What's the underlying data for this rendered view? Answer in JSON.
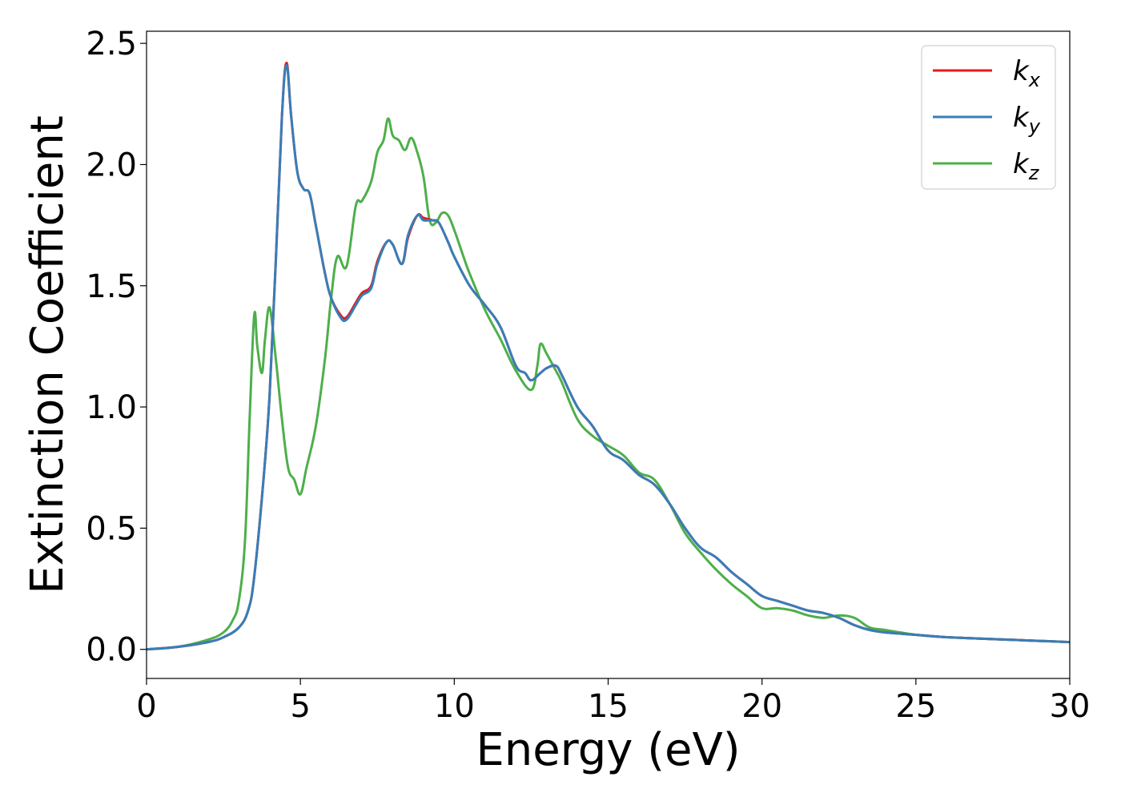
{
  "chart_data": {
    "type": "line",
    "xlabel": "Energy (eV)",
    "ylabel": "Extinction Coefficient",
    "xlim": [
      0,
      30
    ],
    "ylim": [
      -0.12,
      2.55
    ],
    "xticks": [
      0,
      5,
      10,
      15,
      20,
      25,
      30
    ],
    "xtick_labels": [
      "0",
      "5",
      "10",
      "15",
      "20",
      "25",
      "30"
    ],
    "yticks": [
      0.0,
      0.5,
      1.0,
      1.5,
      2.0,
      2.5
    ],
    "ytick_labels": [
      "0.0",
      "0.5",
      "1.0",
      "1.5",
      "2.0",
      "2.5"
    ],
    "grid": false,
    "legend_position": "top-right",
    "series": [
      {
        "name": "kx",
        "legend_base": "k",
        "legend_sub": "x",
        "color": "#e41a1c",
        "x": [
          0,
          1,
          2,
          2.5,
          3,
          3.3,
          3.5,
          3.8,
          4.0,
          4.2,
          4.4,
          4.55,
          4.7,
          4.9,
          5.1,
          5.3,
          5.5,
          5.8,
          6.0,
          6.3,
          6.5,
          6.8,
          7.0,
          7.3,
          7.5,
          7.8,
          8.0,
          8.3,
          8.5,
          8.8,
          9.0,
          9.3,
          9.5,
          9.8,
          10.0,
          10.5,
          11.0,
          11.5,
          12.0,
          12.3,
          12.5,
          12.8,
          13.0,
          13.3,
          13.5,
          14.0,
          14.5,
          15.0,
          15.5,
          16.0,
          16.5,
          17.0,
          17.5,
          18.0,
          18.5,
          19.0,
          19.5,
          20.0,
          20.5,
          21.0,
          21.5,
          22.0,
          22.5,
          23.0,
          23.5,
          24.0,
          25.0,
          26.0,
          27.0,
          28.0,
          29.0,
          30.0
        ],
        "y": [
          0.0,
          0.01,
          0.03,
          0.05,
          0.09,
          0.16,
          0.3,
          0.7,
          1.05,
          1.6,
          2.2,
          2.42,
          2.2,
          1.97,
          1.9,
          1.88,
          1.75,
          1.55,
          1.45,
          1.38,
          1.37,
          1.43,
          1.47,
          1.5,
          1.6,
          1.68,
          1.67,
          1.59,
          1.7,
          1.79,
          1.78,
          1.77,
          1.76,
          1.68,
          1.62,
          1.5,
          1.42,
          1.33,
          1.17,
          1.14,
          1.11,
          1.14,
          1.16,
          1.17,
          1.13,
          1.0,
          0.92,
          0.82,
          0.78,
          0.72,
          0.68,
          0.6,
          0.5,
          0.42,
          0.38,
          0.32,
          0.27,
          0.22,
          0.2,
          0.18,
          0.16,
          0.15,
          0.13,
          0.1,
          0.08,
          0.07,
          0.06,
          0.05,
          0.045,
          0.04,
          0.035,
          0.03
        ]
      },
      {
        "name": "ky",
        "legend_base": "k",
        "legend_sub": "y",
        "color": "#377eb8",
        "x": [
          0,
          1,
          2,
          2.5,
          3,
          3.3,
          3.5,
          3.8,
          4.0,
          4.2,
          4.4,
          4.55,
          4.7,
          4.9,
          5.1,
          5.3,
          5.5,
          5.8,
          6.0,
          6.3,
          6.5,
          6.8,
          7.0,
          7.3,
          7.5,
          7.8,
          8.0,
          8.3,
          8.5,
          8.8,
          9.0,
          9.3,
          9.5,
          9.8,
          10.0,
          10.5,
          11.0,
          11.5,
          12.0,
          12.3,
          12.5,
          12.8,
          13.0,
          13.3,
          13.5,
          14.0,
          14.5,
          15.0,
          15.5,
          16.0,
          16.5,
          17.0,
          17.5,
          18.0,
          18.5,
          19.0,
          19.5,
          20.0,
          20.5,
          21.0,
          21.5,
          22.0,
          22.5,
          23.0,
          23.5,
          24.0,
          25.0,
          26.0,
          27.0,
          28.0,
          29.0,
          30.0
        ],
        "y": [
          0.0,
          0.01,
          0.03,
          0.05,
          0.09,
          0.16,
          0.3,
          0.7,
          1.05,
          1.6,
          2.2,
          2.41,
          2.2,
          1.97,
          1.9,
          1.88,
          1.75,
          1.55,
          1.45,
          1.37,
          1.36,
          1.42,
          1.46,
          1.49,
          1.59,
          1.68,
          1.67,
          1.59,
          1.71,
          1.79,
          1.77,
          1.77,
          1.76,
          1.68,
          1.62,
          1.5,
          1.42,
          1.33,
          1.17,
          1.14,
          1.11,
          1.14,
          1.16,
          1.17,
          1.13,
          1.0,
          0.92,
          0.82,
          0.78,
          0.72,
          0.68,
          0.6,
          0.5,
          0.42,
          0.38,
          0.32,
          0.27,
          0.22,
          0.2,
          0.18,
          0.16,
          0.15,
          0.13,
          0.1,
          0.08,
          0.07,
          0.06,
          0.05,
          0.045,
          0.04,
          0.035,
          0.03
        ]
      },
      {
        "name": "kz",
        "legend_base": "k",
        "legend_sub": "z",
        "color": "#4daf4a",
        "x": [
          0,
          1,
          2,
          2.5,
          2.8,
          3.0,
          3.2,
          3.35,
          3.5,
          3.6,
          3.75,
          3.85,
          4.0,
          4.2,
          4.4,
          4.6,
          4.8,
          5.0,
          5.2,
          5.5,
          5.8,
          6.0,
          6.2,
          6.5,
          6.8,
          7.0,
          7.3,
          7.5,
          7.7,
          7.85,
          8.0,
          8.2,
          8.4,
          8.6,
          8.8,
          9.0,
          9.2,
          9.4,
          9.6,
          9.8,
          10.0,
          10.3,
          10.5,
          11.0,
          11.5,
          12.0,
          12.5,
          12.7,
          12.8,
          13.0,
          13.3,
          13.5,
          14.0,
          14.5,
          15.0,
          15.5,
          16.0,
          16.5,
          17.0,
          17.5,
          18.0,
          18.5,
          19.0,
          19.5,
          20.0,
          20.5,
          21.0,
          21.5,
          22.0,
          22.5,
          23.0,
          23.5,
          24.0,
          25.0,
          26.0,
          27.0,
          28.0,
          29.0,
          30.0
        ],
        "y": [
          0.0,
          0.01,
          0.04,
          0.07,
          0.12,
          0.2,
          0.45,
          0.95,
          1.38,
          1.25,
          1.14,
          1.28,
          1.41,
          1.2,
          0.95,
          0.75,
          0.7,
          0.64,
          0.75,
          0.92,
          1.2,
          1.45,
          1.62,
          1.58,
          1.83,
          1.85,
          1.93,
          2.05,
          2.1,
          2.19,
          2.12,
          2.1,
          2.06,
          2.11,
          2.05,
          1.95,
          1.77,
          1.76,
          1.8,
          1.79,
          1.73,
          1.62,
          1.55,
          1.4,
          1.28,
          1.15,
          1.07,
          1.17,
          1.26,
          1.22,
          1.15,
          1.1,
          0.95,
          0.88,
          0.84,
          0.8,
          0.73,
          0.7,
          0.6,
          0.48,
          0.4,
          0.33,
          0.27,
          0.22,
          0.17,
          0.17,
          0.16,
          0.14,
          0.13,
          0.14,
          0.13,
          0.09,
          0.08,
          0.06,
          0.05,
          0.045,
          0.04,
          0.035,
          0.03
        ]
      }
    ]
  }
}
